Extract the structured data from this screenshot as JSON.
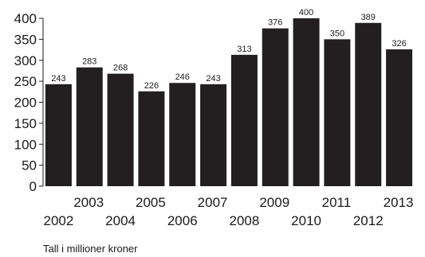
{
  "chart_data": {
    "type": "bar",
    "categories": [
      "2002",
      "2003",
      "2004",
      "2005",
      "2006",
      "2007",
      "2008",
      "2009",
      "2010",
      "2011",
      "2012",
      "2013"
    ],
    "values": [
      243,
      283,
      268,
      226,
      246,
      243,
      313,
      376,
      400,
      350,
      389,
      326
    ],
    "data_labels": [
      "243",
      "283",
      "268",
      "226",
      "246",
      "243",
      "313",
      "376",
      "400",
      "350",
      "389",
      "326"
    ],
    "ylim": [
      0,
      400
    ],
    "yticks": [
      0,
      50,
      100,
      150,
      200,
      250,
      300,
      350,
      400
    ],
    "grid": false,
    "bar_color": "#231f20"
  },
  "footnote": "Tall i millioner kroner"
}
